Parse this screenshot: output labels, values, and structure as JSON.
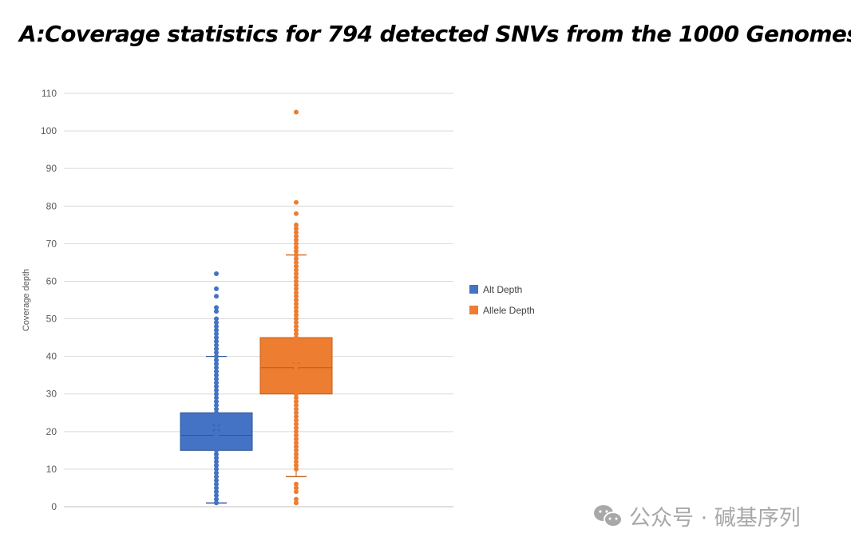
{
  "chart_data": {
    "type": "box",
    "title": "A:Coverage statistics for 794 detected SNVs from the 1000 Genomes",
    "xlabel": "",
    "ylabel": "Coverage depth",
    "ylim": [
      0,
      110
    ],
    "yticks": [
      0,
      10,
      20,
      30,
      40,
      50,
      60,
      70,
      80,
      90,
      100,
      110
    ],
    "grid": true,
    "legend_position": "right",
    "series": [
      {
        "name": "Alt Depth",
        "color": "#4472C4",
        "whisker_low": 1,
        "q1": 15,
        "median": 19,
        "q3": 25,
        "whisker_high": 40,
        "mean": 21,
        "points": [
          1,
          2,
          3,
          4,
          5,
          6,
          7,
          8,
          9,
          10,
          11,
          12,
          13,
          14,
          15,
          16,
          17,
          18,
          19,
          20,
          21,
          22,
          23,
          24,
          25,
          26,
          27,
          28,
          29,
          30,
          31,
          32,
          33,
          34,
          35,
          36,
          37,
          38,
          39,
          40,
          41,
          42,
          43,
          44,
          45,
          46,
          47,
          48,
          49,
          50,
          52,
          53,
          56,
          58,
          62
        ]
      },
      {
        "name": "Allele Depth",
        "color": "#ED7D31",
        "whisker_low": 8,
        "q1": 30,
        "median": 37,
        "q3": 45,
        "whisker_high": 67,
        "mean": 37.5,
        "points": [
          1,
          2,
          4,
          5,
          6,
          10,
          11,
          12,
          13,
          14,
          15,
          16,
          17,
          18,
          19,
          20,
          21,
          22,
          23,
          24,
          25,
          26,
          27,
          28,
          29,
          30,
          31,
          32,
          33,
          34,
          35,
          36,
          37,
          38,
          39,
          40,
          41,
          42,
          43,
          44,
          45,
          46,
          47,
          48,
          49,
          50,
          51,
          52,
          53,
          54,
          55,
          56,
          57,
          58,
          59,
          60,
          61,
          62,
          63,
          64,
          65,
          66,
          67,
          68,
          69,
          70,
          71,
          72,
          73,
          74,
          75,
          78,
          81,
          105
        ]
      }
    ]
  },
  "watermark": {
    "text": "公众号 · 碱基序列",
    "icon": "wechat-icon"
  }
}
